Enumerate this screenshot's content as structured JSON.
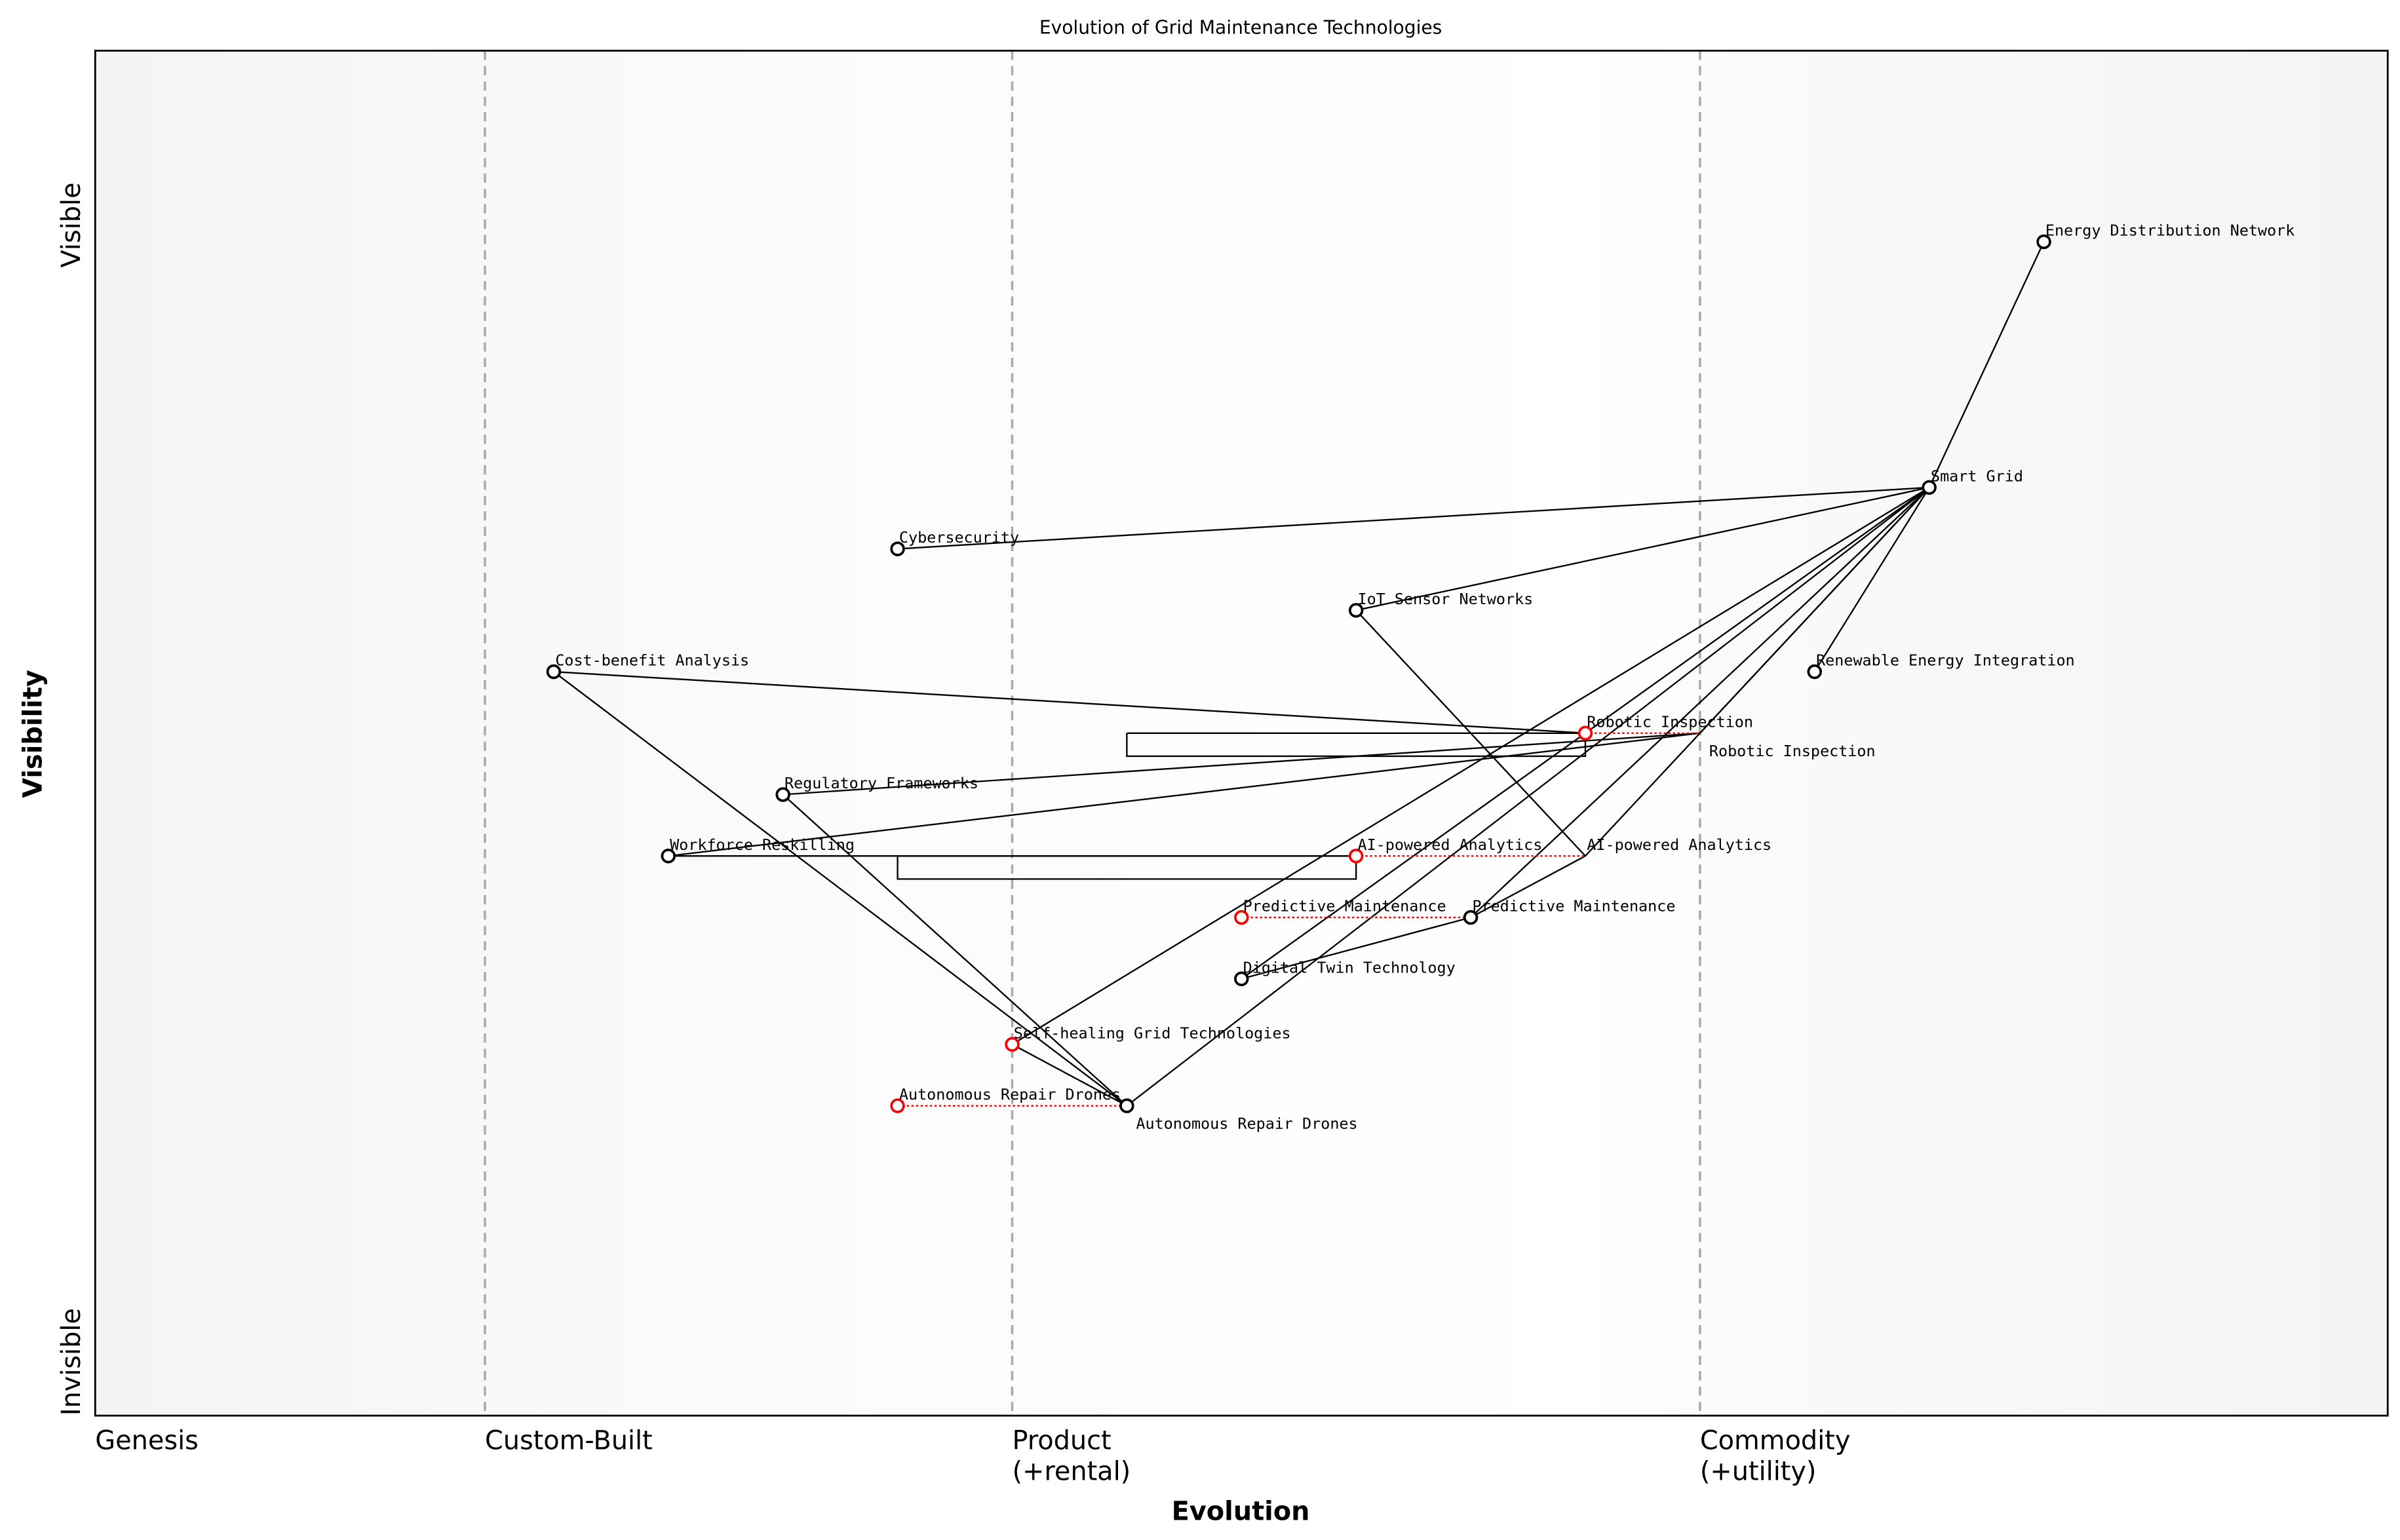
{
  "chart_data": {
    "type": "scatter",
    "subtype": "wardley-map",
    "title": "Evolution of Grid Maintenance Technologies",
    "xlabel": "Evolution",
    "ylabel": "Visibility",
    "xlim": [
      0,
      1
    ],
    "ylim": [
      0,
      1
    ],
    "y_ticks": [
      {
        "label": "Invisible",
        "value": 0
      },
      {
        "label": "Visible",
        "value": 0.87
      }
    ],
    "stages": [
      {
        "label": "Genesis",
        "x": 0
      },
      {
        "label": "Custom-Built",
        "x": 0.17
      },
      {
        "label": "Product\n(+rental)",
        "x": 0.4
      },
      {
        "label": "Commodity\n(+utility)",
        "x": 0.7
      }
    ],
    "components": [
      {
        "name": "Energy Distribution Network",
        "x": 0.85,
        "y": 0.86
      },
      {
        "name": "Smart Grid",
        "x": 0.8,
        "y": 0.68
      },
      {
        "name": "Cybersecurity",
        "x": 0.35,
        "y": 0.635
      },
      {
        "name": "IoT Sensor Networks",
        "x": 0.55,
        "y": 0.59
      },
      {
        "name": "Renewable Energy Integration",
        "x": 0.75,
        "y": 0.545
      },
      {
        "name": "Cost-benefit Analysis",
        "x": 0.2,
        "y": 0.545
      },
      {
        "name": "Robotic Inspection",
        "x": 0.65,
        "y": 0.5,
        "evolve_to": 0.7
      },
      {
        "name": "Regulatory Frameworks",
        "x": 0.3,
        "y": 0.455
      },
      {
        "name": "Workforce Reskilling",
        "x": 0.25,
        "y": 0.41
      },
      {
        "name": "AI-powered Analytics",
        "x": 0.55,
        "y": 0.41,
        "evolve_to": 0.65
      },
      {
        "name": "Predictive Maintenance",
        "x": 0.5,
        "y": 0.365,
        "evolve_to": 0.6
      },
      {
        "name": "Digital Twin Technology",
        "x": 0.5,
        "y": 0.32
      },
      {
        "name": "Self-healing Grid Technologies",
        "x": 0.4,
        "y": 0.272,
        "evolve_to": 0.4
      },
      {
        "name": "Autonomous Repair Drones",
        "x": 0.35,
        "y": 0.227,
        "evolve_to": 0.45
      }
    ],
    "links": [
      [
        "Energy Distribution Network",
        "Smart Grid"
      ],
      [
        "Smart Grid",
        "Cybersecurity"
      ],
      [
        "Smart Grid",
        "IoT Sensor Networks"
      ],
      [
        "Smart Grid",
        "Renewable Energy Integration"
      ],
      [
        "Smart Grid",
        "Self-healing Grid Technologies"
      ],
      [
        "Smart Grid",
        "Autonomous Repair Drones"
      ],
      [
        "Smart Grid",
        "Digital Twin Technology"
      ],
      [
        "Smart Grid",
        "Predictive Maintenance"
      ],
      [
        "Smart Grid",
        "AI-powered Analytics"
      ],
      [
        "Smart Grid",
        "Robotic Inspection"
      ],
      [
        "IoT Sensor Networks",
        "AI-powered Analytics"
      ],
      [
        "Cost-benefit Analysis",
        "Robotic Inspection"
      ],
      [
        "Cost-benefit Analysis",
        "Autonomous Repair Drones"
      ],
      [
        "Regulatory Frameworks",
        "Robotic Inspection"
      ],
      [
        "Regulatory Frameworks",
        "Autonomous Repair Drones"
      ],
      [
        "Workforce Reskilling",
        "Robotic Inspection"
      ],
      [
        "Workforce Reskilling",
        "AI-powered Analytics"
      ],
      [
        "AI-powered Analytics",
        "Predictive Maintenance"
      ],
      [
        "Digital Twin Technology",
        "Predictive Maintenance"
      ],
      [
        "Self-healing Grid Technologies",
        "Autonomous Repair Drones"
      ]
    ],
    "colors": {
      "component": "#000000",
      "evolving": "#ff0000",
      "stage_line": "#aaaaaa"
    },
    "grid": false
  }
}
